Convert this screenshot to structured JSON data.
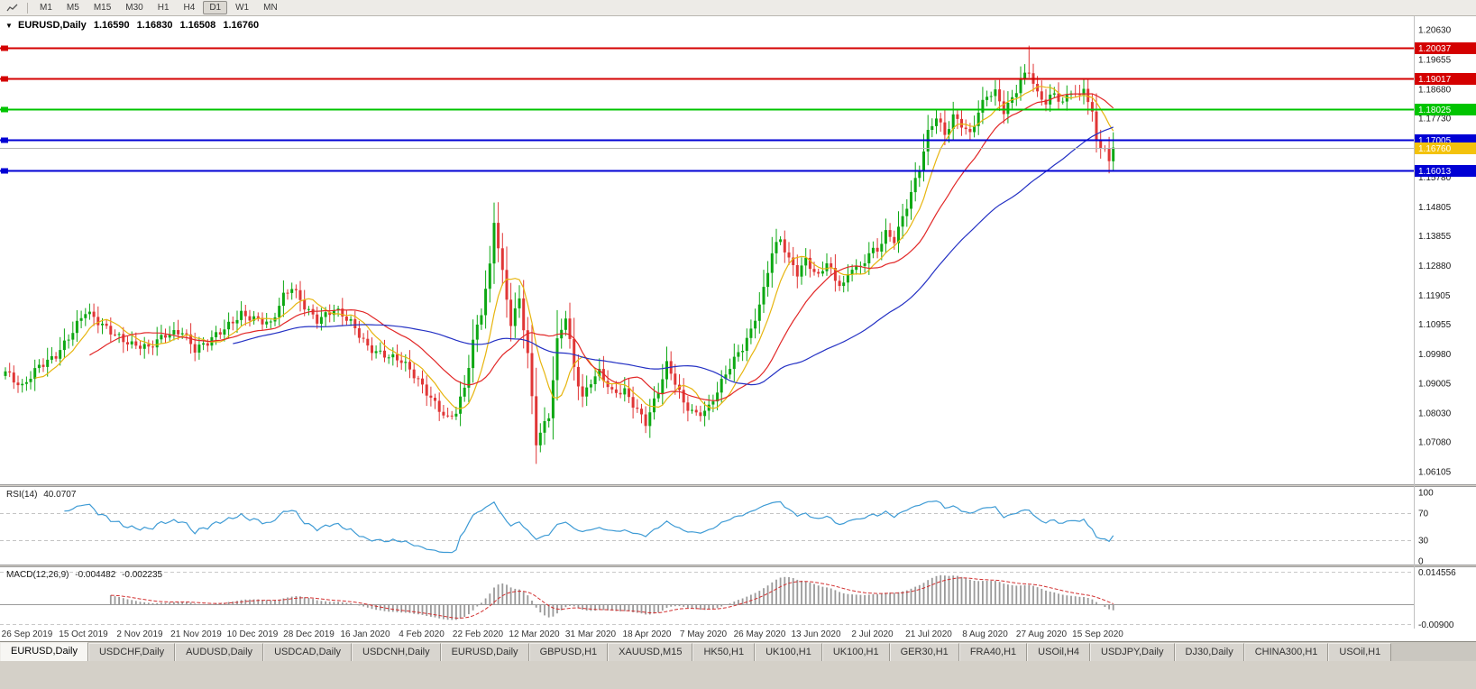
{
  "icons": {
    "chart_dropdown": "▼"
  },
  "toolbar": {
    "timeframes": [
      "M1",
      "M5",
      "M15",
      "M30",
      "H1",
      "H4",
      "D1",
      "W1",
      "MN"
    ],
    "active_timeframe": "D1"
  },
  "chart_data": {
    "type": "candlestick",
    "symbol": "EURUSD",
    "timeframe": "Daily",
    "title": {
      "symbol": "EURUSD,Daily",
      "open": "1.16590",
      "high": "1.16830",
      "low": "1.16508",
      "close": "1.16760"
    },
    "x_labels": [
      "26 Sep 2019",
      "15 Oct 2019",
      "2 Nov 2019",
      "21 Nov 2019",
      "10 Dec 2019",
      "28 Dec 2019",
      "16 Jan 2020",
      "4 Feb 2020",
      "22 Feb 2020",
      "12 Mar 2020",
      "31 Mar 2020",
      "18 Apr 2020",
      "7 May 2020",
      "26 May 2020",
      "13 Jun 2020",
      "2 Jul 2020",
      "21 Jul 2020",
      "8 Aug 2020",
      "27 Aug 2020",
      "15 Sep 2020"
    ],
    "y_labels": [
      "1.20630",
      "1.19655",
      "1.18680",
      "1.17730",
      "1.16755",
      "1.15780",
      "1.14805",
      "1.13855",
      "1.12880",
      "1.11905",
      "1.10955",
      "1.09980",
      "1.09005",
      "1.08030",
      "1.07080",
      "1.06105"
    ],
    "y_top_value": 1.21075,
    "y_bottom_value": 1.0569,
    "candles": {
      "count": 264,
      "noise": 0.0016,
      "up_color": "#0da813",
      "down_color": "#e03636",
      "anchors": [
        [
          0,
          1.094
        ],
        [
          2,
          1.0905
        ],
        [
          4,
          1.088
        ],
        [
          8,
          1.096
        ],
        [
          12,
          1.1
        ],
        [
          16,
          1.107
        ],
        [
          19,
          1.113
        ],
        [
          22,
          1.11
        ],
        [
          26,
          1.107
        ],
        [
          30,
          1.103
        ],
        [
          34,
          1.101
        ],
        [
          38,
          1.106
        ],
        [
          42,
          1.108
        ],
        [
          45,
          1.1015
        ],
        [
          48,
          1.103
        ],
        [
          52,
          1.1075
        ],
        [
          56,
          1.1135
        ],
        [
          60,
          1.1115
        ],
        [
          63,
          1.109
        ],
        [
          66,
          1.118
        ],
        [
          68,
          1.1215
        ],
        [
          71,
          1.116
        ],
        [
          74,
          1.1115
        ],
        [
          78,
          1.114
        ],
        [
          82,
          1.1095
        ],
        [
          86,
          1.1025
        ],
        [
          90,
          1.1
        ],
        [
          94,
          1.097
        ],
        [
          98,
          1.0905
        ],
        [
          102,
          1.084
        ],
        [
          105,
          1.079
        ],
        [
          107,
          1.081
        ],
        [
          109,
          1.088
        ],
        [
          111,
          1.103
        ],
        [
          113,
          1.113
        ],
        [
          115,
          1.1285
        ],
        [
          116,
          1.144
        ],
        [
          118,
          1.127
        ],
        [
          120,
          1.1105
        ],
        [
          122,
          1.118
        ],
        [
          124,
          1.099
        ],
        [
          126,
          1.07
        ],
        [
          127,
          1.073
        ],
        [
          129,
          1.079
        ],
        [
          131,
          1.104
        ],
        [
          133,
          1.113
        ],
        [
          135,
          1.096
        ],
        [
          137,
          1.0855
        ],
        [
          139,
          1.0905
        ],
        [
          141,
          1.093
        ],
        [
          144,
          1.0865
        ],
        [
          147,
          1.088
        ],
        [
          150,
          1.082
        ],
        [
          152,
          1.0775
        ],
        [
          155,
          1.087
        ],
        [
          157,
          1.0955
        ],
        [
          159,
          1.09
        ],
        [
          161,
          1.0835
        ],
        [
          164,
          1.0805
        ],
        [
          167,
          1.0825
        ],
        [
          170,
          1.09
        ],
        [
          172,
          1.095
        ],
        [
          175,
          1.1015
        ],
        [
          177,
          1.1075
        ],
        [
          180,
          1.1215
        ],
        [
          182,
          1.134
        ],
        [
          184,
          1.1375
        ],
        [
          186,
          1.13
        ],
        [
          188,
          1.1255
        ],
        [
          190,
          1.13
        ],
        [
          193,
          1.1255
        ],
        [
          195,
          1.131
        ],
        [
          197,
          1.1245
        ],
        [
          199,
          1.1225
        ],
        [
          201,
          1.128
        ],
        [
          203,
          1.127
        ],
        [
          205,
          1.1325
        ],
        [
          207,
          1.134
        ],
        [
          209,
          1.14
        ],
        [
          211,
          1.138
        ],
        [
          213,
          1.145
        ],
        [
          215,
          1.1525
        ],
        [
          217,
          1.16
        ],
        [
          219,
          1.1715
        ],
        [
          221,
          1.1775
        ],
        [
          223,
          1.172
        ],
        [
          225,
          1.1785
        ],
        [
          227,
          1.176
        ],
        [
          229,
          1.172
        ],
        [
          231,
          1.179
        ],
        [
          233,
          1.184
        ],
        [
          235,
          1.185
        ],
        [
          237,
          1.1795
        ],
        [
          239,
          1.184
        ],
        [
          241,
          1.1905
        ],
        [
          243,
          1.1935
        ],
        [
          245,
          1.185
        ],
        [
          247,
          1.182
        ],
        [
          249,
          1.1845
        ],
        [
          251,
          1.1815
        ],
        [
          253,
          1.1865
        ],
        [
          255,
          1.1845
        ],
        [
          256,
          1.1885
        ],
        [
          258,
          1.179
        ],
        [
          259,
          1.171
        ],
        [
          261,
          1.166
        ],
        [
          262,
          1.1625
        ],
        [
          263,
          1.1676
        ]
      ],
      "wick_overrides": {
        "116": {
          "h": 1.1495
        },
        "126": {
          "l": 1.0636
        },
        "243": {
          "h": 1.2011
        }
      }
    },
    "moving_averages": [
      {
        "period": 8,
        "color": "#e7b50f"
      },
      {
        "period": 21,
        "color": "#e22828"
      },
      {
        "period": 55,
        "color": "#2431c4"
      }
    ],
    "levels": [
      {
        "label": "1.20037",
        "price": 1.20037,
        "color": "#d40000",
        "width": 2
      },
      {
        "label": "1.19017",
        "price": 1.19017,
        "color": "#d40000",
        "width": 2
      },
      {
        "label": "1.18025",
        "price": 1.18025,
        "color": "#00c400",
        "width": 2
      },
      {
        "label": "1.17005",
        "price": 1.17005,
        "color": "#0000d4",
        "width": 2
      },
      {
        "label": "1.16013",
        "price": 1.16013,
        "color": "#0000d4",
        "width": 2
      }
    ],
    "bid": {
      "price": 1.1676,
      "label": "1.16760",
      "tag_bg": "#f3c20c",
      "tag_text": "#000000",
      "line_color": "#b5b5b5"
    },
    "rsi": {
      "name": "RSI(14)",
      "value": "40.0707",
      "period": 14,
      "color": "#3e9bd5",
      "axis": [
        {
          "label": "100",
          "value": 100
        },
        {
          "label": "70",
          "value": 70
        },
        {
          "label": "30",
          "value": 30
        },
        {
          "label": "0",
          "value": 0
        }
      ],
      "dashed_levels": [
        70,
        30
      ]
    },
    "macd": {
      "name": "MACD(12,26,9)",
      "value": "-0.004482",
      "signal_value": "-0.002235",
      "fast": 12,
      "slow": 26,
      "signal": 9,
      "hist_color": "#9a9a9a",
      "signal_color": "#d23030",
      "axis": [
        {
          "label": "0.014556",
          "value": 0.014556
        },
        {
          "label": "-0.00900",
          "value": -0.009
        }
      ]
    }
  },
  "tabs": {
    "active_index": 0,
    "items": [
      "EURUSD,Daily",
      "USDCHF,Daily",
      "AUDUSD,Daily",
      "USDCAD,Daily",
      "USDCNH,Daily",
      "EURUSD,Daily",
      "GBPUSD,H1",
      "XAUUSD,M15",
      "HK50,H1",
      "UK100,H1",
      "UK100,H1",
      "GER30,H1",
      "FRA40,H1",
      "USOil,H4",
      "USDJPY,Daily",
      "DJ30,Daily",
      "CHINA300,H1",
      "USOil,H1"
    ]
  }
}
